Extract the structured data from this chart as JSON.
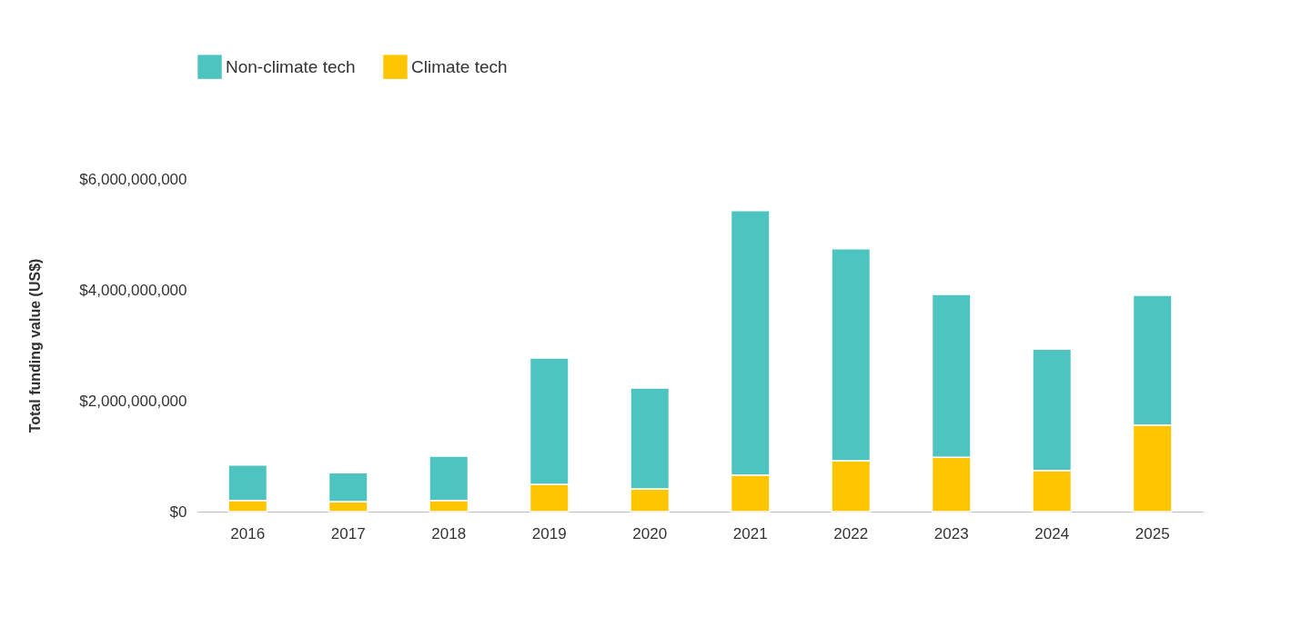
{
  "chart_data": {
    "type": "bar",
    "stacked": true,
    "ylabel": "Total funding value (US$)",
    "categories": [
      "2016",
      "2017",
      "2018",
      "2019",
      "2020",
      "2021",
      "2022",
      "2023",
      "2024",
      "2025"
    ],
    "series": [
      {
        "name": "Climate tech",
        "color": "#ffc600",
        "values": [
          200000000,
          180000000,
          200000000,
          490000000,
          410000000,
          660000000,
          920000000,
          980000000,
          740000000,
          1560000000
        ]
      },
      {
        "name": "Non-climate tech",
        "color": "#4dc4c0",
        "values": [
          640000000,
          520000000,
          800000000,
          2280000000,
          1820000000,
          4770000000,
          3820000000,
          2940000000,
          2190000000,
          2340000000
        ]
      }
    ],
    "ylim": [
      0,
      6000000000
    ],
    "yticks": [
      {
        "value": 0,
        "label": "$0"
      },
      {
        "value": 2000000000,
        "label": "$2,000,000,000"
      },
      {
        "value": 4000000000,
        "label": "$4,000,000,000"
      },
      {
        "value": 6000000000,
        "label": "$6,000,000,000"
      }
    ],
    "grid": false,
    "legend": "top"
  }
}
